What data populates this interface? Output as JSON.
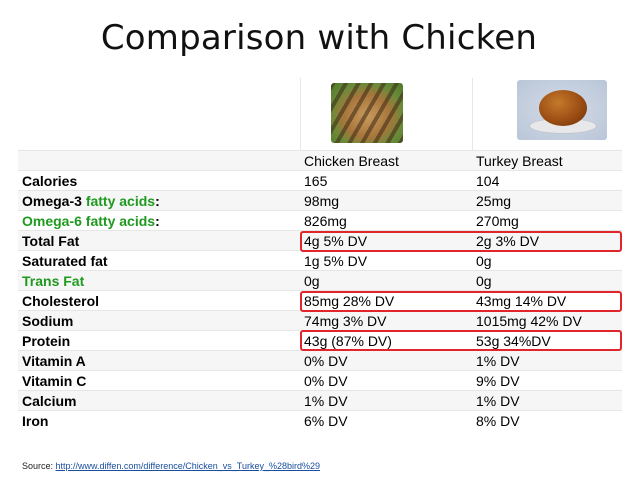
{
  "title": "Comparison with Chicken",
  "columns": [
    "",
    "Chicken Breast",
    "Turkey Breast"
  ],
  "images": [
    {
      "icon": "grilled-chicken-breast-photo"
    },
    {
      "icon": "roast-turkey-photo"
    }
  ],
  "rows": [
    {
      "label": "Calories",
      "chicken": "165",
      "turkey": "104"
    },
    {
      "label_prefix": "Omega-3 ",
      "label_green": "fatty acids",
      "label_suffix": ":",
      "chicken": "98mg",
      "turkey": "25mg"
    },
    {
      "label_green_full": "Omega-6 fatty acids",
      "label_suffix": ":",
      "chicken": "826mg",
      "turkey": "270mg"
    },
    {
      "label": "Total Fat",
      "chicken": "4g 5% DV",
      "turkey": "2g 3% DV"
    },
    {
      "label": "Saturated fat",
      "chicken": "1g 5% DV",
      "turkey": "0g"
    },
    {
      "label_green_full": "Trans Fat",
      "chicken": "0g",
      "turkey": "0g"
    },
    {
      "label": "Cholesterol",
      "chicken": "85mg 28% DV",
      "turkey": "43mg 14% DV"
    },
    {
      "label": "Sodium",
      "chicken": "74mg 3% DV",
      "turkey": "1015mg 42% DV"
    },
    {
      "label": "Protein",
      "chicken": "43g (87% DV)",
      "turkey": "53g 34%DV"
    },
    {
      "label": "Vitamin A",
      "chicken": "0% DV",
      "turkey": "1% DV"
    },
    {
      "label": "Vitamin C",
      "chicken": "0% DV",
      "turkey": "9% DV"
    },
    {
      "label": "Calcium",
      "chicken": "1% DV",
      "turkey": "1% DV"
    },
    {
      "label": "Iron",
      "chicken": "6% DV",
      "turkey": "8% DV"
    }
  ],
  "highlight_color": "#e0262a",
  "source": {
    "label": "Source: ",
    "link_text": "http://www.diffen.com/difference/Chicken_vs_Turkey_%28bird%29"
  }
}
